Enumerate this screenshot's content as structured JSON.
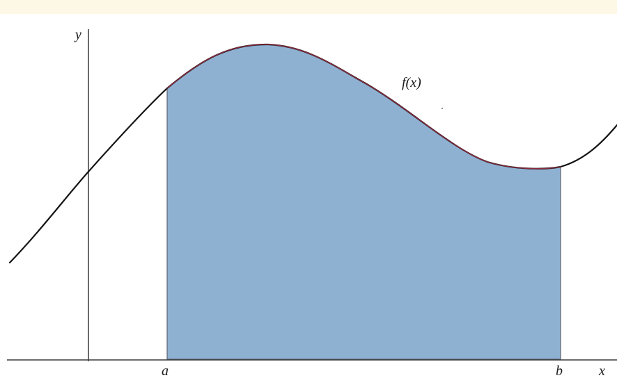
{
  "diagram": {
    "function_label": "f(x)",
    "y_axis_label": "y",
    "x_axis_label": "x",
    "lower_limit_label": "a",
    "upper_limit_label": "b"
  },
  "colors": {
    "top_band": "#fdf8e6",
    "fill": "#8fb1d1",
    "fill_outline": "#5a6270",
    "curve": "#141414",
    "curve_over_fill": "#8a2a3e",
    "axes": "#3a3a3a"
  }
}
